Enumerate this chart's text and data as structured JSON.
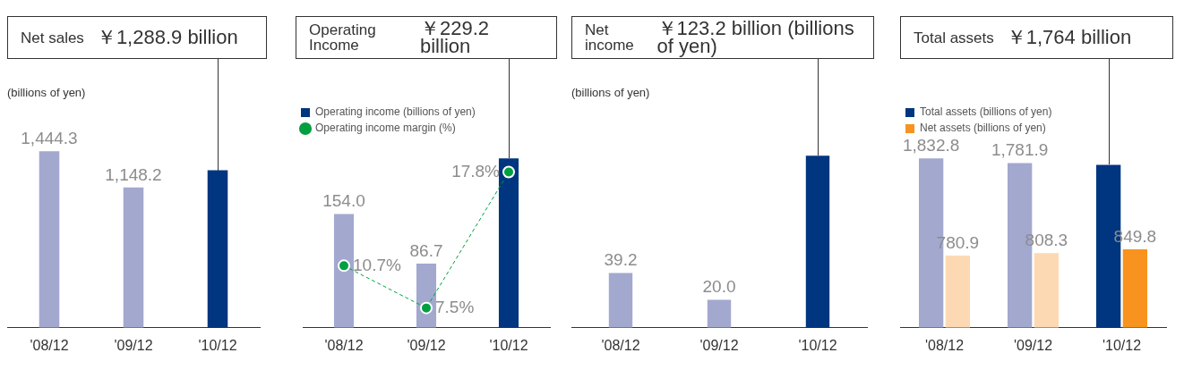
{
  "chart_data": [
    {
      "type": "bar",
      "title": "Net sales",
      "subtitle": "￥1,288.9 billion",
      "ylabel": "(billions of yen)",
      "categories": [
        "'08/12",
        "'09/12",
        "'10/12"
      ],
      "values": [
        1444.3,
        1148.2,
        1288.9
      ],
      "colors": [
        "#a3a8cf",
        "#a3a8cf",
        "#003580"
      ],
      "value_labels": [
        "1,444.3",
        "1,148.2",
        null
      ],
      "tick_labels": "x",
      "grid": false,
      "legend": false
    },
    {
      "type": "bar",
      "title": "Operating Income",
      "subtitle": "￥229.2 billion",
      "categories": [
        "'08/12",
        "'09/12",
        "'10/12"
      ],
      "series": [
        {
          "name": "Operating income (billions of yen)",
          "type": "bar",
          "color": "#003580",
          "colors": [
            "#a3a8cf",
            "#a3a8cf",
            "#003580"
          ],
          "values": [
            154.0,
            86.7,
            229.2
          ],
          "value_labels": [
            "154.0",
            "86.7",
            null
          ]
        },
        {
          "name": "Operating income margin (%)",
          "type": "line",
          "axis": "y2",
          "color": "#00a040",
          "values": [
            10.7,
            7.5,
            17.8
          ],
          "value_labels": [
            "10.7%",
            "7.5%",
            "17.8%"
          ]
        }
      ],
      "marker": "circle",
      "line_style": "dashed",
      "tick_labels": "x",
      "grid": false,
      "legend": "top left"
    },
    {
      "type": "bar",
      "title": "Net income",
      "subtitle": "￥123.2 billion (billions of yen)",
      "ylabel": "(billions of yen)",
      "categories": [
        "'08/12",
        "'09/12",
        "'10/12"
      ],
      "values": [
        39.2,
        20.0,
        123.2
      ],
      "colors": [
        "#a3a8cf",
        "#a3a8cf",
        "#003580"
      ],
      "value_labels": [
        "39.2",
        "20.0",
        null
      ],
      "tick_labels": "x",
      "grid": false,
      "legend": false
    },
    {
      "type": "bar",
      "title": "Total assets",
      "subtitle": "￥1,764 billion",
      "categories": [
        "'08/12",
        "'09/12",
        "'10/12"
      ],
      "series": [
        {
          "name": "Total assets (billions of yen)",
          "type": "bar",
          "color": "#003580",
          "colors": [
            "#a3a8cf",
            "#a3a8cf",
            "#003580"
          ],
          "values": [
            1832.8,
            1781.9,
            1764
          ],
          "value_labels": [
            "1,832.8",
            "1,781.9",
            null
          ]
        },
        {
          "name": "Net assets (billions of yen)",
          "type": "bar",
          "color": "#f7931e",
          "colors": [
            "#fdd9b3",
            "#fdd9b3",
            "#f7931e"
          ],
          "values": [
            780.9,
            808.3,
            849.8
          ],
          "value_labels": [
            "780.9",
            "808.3",
            "849.8"
          ]
        }
      ],
      "tick_labels": "x",
      "grid": false,
      "legend": "top left"
    }
  ]
}
